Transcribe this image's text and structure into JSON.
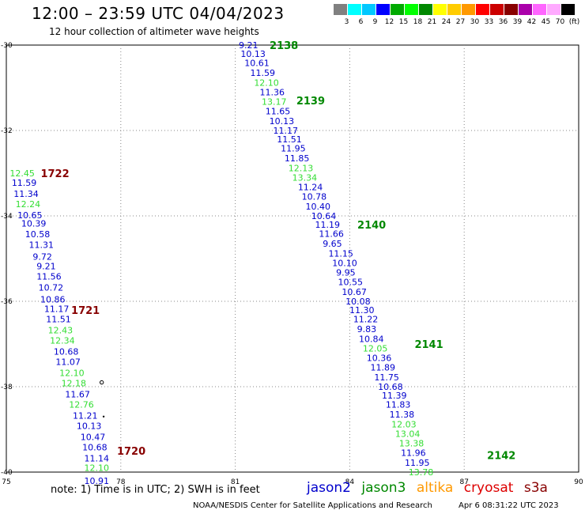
{
  "title": "12:00 – 23:59 UTC 04/04/2023",
  "subtitle": "12 hour collection of altimeter wave heights",
  "legend": {
    "colors": [
      "#808080",
      "#00ffff",
      "#00c8ff",
      "#0000ff",
      "#00aa00",
      "#00ff00",
      "#008800",
      "#ffff00",
      "#ffcc00",
      "#ff9900",
      "#ff0000",
      "#cc0000",
      "#880000",
      "#aa00aa",
      "#ff66ff",
      "#ffaaff",
      "#000000"
    ],
    "labels": [
      "3",
      "6",
      "9",
      "12",
      "15",
      "18",
      "21",
      "24",
      "27",
      "30",
      "33",
      "36",
      "39",
      "42",
      "45",
      "70",
      "(ft)"
    ]
  },
  "notes": "note:  1) Time is in UTC;  2) SWH is in feet",
  "satellites": [
    {
      "name": "jason2",
      "color": "#0000cc"
    },
    {
      "name": "jason3",
      "color": "#008800"
    },
    {
      "name": "altika",
      "color": "#ff9900"
    },
    {
      "name": "cryosat",
      "color": "#dd0000"
    },
    {
      "name": "s3a",
      "color": "#880000"
    }
  ],
  "credit": "NOAA/NESDIS Center for Satellite Applications and Research",
  "timestamp": "Apr  6 08:31:22 UTC 2023",
  "chart_data": {
    "type": "scatter",
    "xlim": [
      75,
      90
    ],
    "ylim": [
      -40,
      -30
    ],
    "xticks": [
      "75",
      "78",
      "81",
      "84",
      "87",
      "90"
    ],
    "yticks": [
      "-30",
      "-32",
      "-34",
      "-36",
      "-38",
      "-40"
    ],
    "grid": true,
    "passes": [
      {
        "label": "1722",
        "x": 75.9,
        "y": -33.0,
        "color": "#880000"
      },
      {
        "label": "1721",
        "x": 76.7,
        "y": -36.2,
        "color": "#880000"
      },
      {
        "label": "1720",
        "x": 77.9,
        "y": -39.5,
        "color": "#880000"
      },
      {
        "label": "2138",
        "x": 81.9,
        "y": -30.0,
        "color": "#008800"
      },
      {
        "label": "2139",
        "x": 82.6,
        "y": -31.3,
        "color": "#008800"
      },
      {
        "label": "2140",
        "x": 84.2,
        "y": -34.2,
        "color": "#008800"
      },
      {
        "label": "2141",
        "x": 85.7,
        "y": -37.0,
        "color": "#008800"
      },
      {
        "label": "2142",
        "x": 87.6,
        "y": -39.6,
        "color": "#008800"
      }
    ],
    "markers": [
      {
        "x": 77.5,
        "y": -37.9,
        "shape": "ring"
      },
      {
        "x": 77.55,
        "y": -38.7,
        "shape": "dot"
      }
    ],
    "series": [
      {
        "points": [
          {
            "x": 75.05,
            "y": -33.0,
            "v": "12.45",
            "c": "#33dd33"
          },
          {
            "x": 75.1,
            "y": -33.22,
            "v": "11.59",
            "c": "#0000cc"
          },
          {
            "x": 75.15,
            "y": -33.48,
            "v": "11.34",
            "c": "#0000cc"
          },
          {
            "x": 75.2,
            "y": -33.72,
            "v": "12.24",
            "c": "#33dd33"
          },
          {
            "x": 75.25,
            "y": -33.98,
            "v": "10.65",
            "c": "#0000cc"
          },
          {
            "x": 75.35,
            "y": -34.18,
            "v": "10.39",
            "c": "#0000cc"
          },
          {
            "x": 75.45,
            "y": -34.43,
            "v": "10.58",
            "c": "#0000cc"
          },
          {
            "x": 75.55,
            "y": -34.68,
            "v": "11.31",
            "c": "#0000cc"
          },
          {
            "x": 75.65,
            "y": -34.95,
            "v": "9.72",
            "c": "#0000cc"
          },
          {
            "x": 75.75,
            "y": -35.18,
            "v": "9.21",
            "c": "#0000cc"
          },
          {
            "x": 75.75,
            "y": -35.42,
            "v": "11.56",
            "c": "#0000cc"
          },
          {
            "x": 75.8,
            "y": -35.68,
            "v": "10.72",
            "c": "#0000cc"
          },
          {
            "x": 75.85,
            "y": -35.95,
            "v": "10.86",
            "c": "#0000cc"
          },
          {
            "x": 75.95,
            "y": -36.18,
            "v": "11.17",
            "c": "#0000cc"
          },
          {
            "x": 76.0,
            "y": -36.42,
            "v": "11.51",
            "c": "#0000cc"
          },
          {
            "x": 76.05,
            "y": -36.68,
            "v": "12.43",
            "c": "#33dd33"
          },
          {
            "x": 76.1,
            "y": -36.92,
            "v": "12.34",
            "c": "#33dd33"
          },
          {
            "x": 76.2,
            "y": -37.18,
            "v": "10.68",
            "c": "#0000cc"
          },
          {
            "x": 76.25,
            "y": -37.42,
            "v": "11.07",
            "c": "#0000cc"
          },
          {
            "x": 76.35,
            "y": -37.68,
            "v": "12.10",
            "c": "#33dd33"
          },
          {
            "x": 76.4,
            "y": -37.92,
            "v": "12.18",
            "c": "#33dd33"
          },
          {
            "x": 76.5,
            "y": -38.18,
            "v": "11.67",
            "c": "#0000cc"
          },
          {
            "x": 76.6,
            "y": -38.42,
            "v": "12.76",
            "c": "#33dd33"
          },
          {
            "x": 76.7,
            "y": -38.68,
            "v": "11.21",
            "c": "#0000cc"
          },
          {
            "x": 76.8,
            "y": -38.92,
            "v": "10.13",
            "c": "#0000cc"
          },
          {
            "x": 76.9,
            "y": -39.18,
            "v": "10.47",
            "c": "#0000cc"
          },
          {
            "x": 76.95,
            "y": -39.42,
            "v": "10.68",
            "c": "#0000cc"
          },
          {
            "x": 77.0,
            "y": -39.68,
            "v": "11.14",
            "c": "#0000cc"
          },
          {
            "x": 77.0,
            "y": -39.9,
            "v": "12.10",
            "c": "#33dd33"
          },
          {
            "x": 77.0,
            "y": -40.2,
            "v": "10.91",
            "c": "#0000cc"
          }
        ]
      },
      {
        "points": [
          {
            "x": 81.05,
            "y": -30.0,
            "v": "9.21",
            "c": "#0000cc"
          },
          {
            "x": 81.1,
            "y": -30.2,
            "v": "10.13",
            "c": "#0000cc"
          },
          {
            "x": 81.2,
            "y": -30.42,
            "v": "10.61",
            "c": "#0000cc"
          },
          {
            "x": 81.35,
            "y": -30.65,
            "v": "11.59",
            "c": "#0000cc"
          },
          {
            "x": 81.45,
            "y": -30.88,
            "v": "12.10",
            "c": "#33dd33"
          },
          {
            "x": 81.6,
            "y": -31.1,
            "v": "11.36",
            "c": "#0000cc"
          },
          {
            "x": 81.65,
            "y": -31.32,
            "v": "13.17",
            "c": "#33dd33"
          },
          {
            "x": 81.75,
            "y": -31.55,
            "v": "11.65",
            "c": "#0000cc"
          },
          {
            "x": 81.85,
            "y": -31.78,
            "v": "10.13",
            "c": "#0000cc"
          },
          {
            "x": 81.95,
            "y": -32.0,
            "v": "11.17",
            "c": "#0000cc"
          },
          {
            "x": 82.05,
            "y": -32.2,
            "v": "11.51",
            "c": "#0000cc"
          },
          {
            "x": 82.15,
            "y": -32.42,
            "v": "11.95",
            "c": "#0000cc"
          },
          {
            "x": 82.25,
            "y": -32.65,
            "v": "11.85",
            "c": "#0000cc"
          },
          {
            "x": 82.35,
            "y": -32.88,
            "v": "12.13",
            "c": "#33dd33"
          },
          {
            "x": 82.45,
            "y": -33.1,
            "v": "13.34",
            "c": "#33dd33"
          },
          {
            "x": 82.6,
            "y": -33.32,
            "v": "11.24",
            "c": "#0000cc"
          },
          {
            "x": 82.7,
            "y": -33.55,
            "v": "10.78",
            "c": "#0000cc"
          },
          {
            "x": 82.8,
            "y": -33.78,
            "v": "10.40",
            "c": "#0000cc"
          },
          {
            "x": 82.95,
            "y": -34.0,
            "v": "10.64",
            "c": "#0000cc"
          },
          {
            "x": 83.05,
            "y": -34.2,
            "v": "11.19",
            "c": "#0000cc"
          },
          {
            "x": 83.15,
            "y": -34.42,
            "v": "11.66",
            "c": "#0000cc"
          },
          {
            "x": 83.25,
            "y": -34.65,
            "v": "9.65",
            "c": "#0000cc"
          },
          {
            "x": 83.4,
            "y": -34.88,
            "v": "11.15",
            "c": "#0000cc"
          },
          {
            "x": 83.5,
            "y": -35.1,
            "v": "10.10",
            "c": "#0000cc"
          },
          {
            "x": 83.6,
            "y": -35.32,
            "v": "9.95",
            "c": "#0000cc"
          },
          {
            "x": 83.65,
            "y": -35.55,
            "v": "10.55",
            "c": "#0000cc"
          },
          {
            "x": 83.75,
            "y": -35.78,
            "v": "10.67",
            "c": "#0000cc"
          },
          {
            "x": 83.85,
            "y": -36.0,
            "v": "10.08",
            "c": "#0000cc"
          },
          {
            "x": 83.95,
            "y": -36.2,
            "v": "11.30",
            "c": "#0000cc"
          },
          {
            "x": 84.05,
            "y": -36.42,
            "v": "11.22",
            "c": "#0000cc"
          },
          {
            "x": 84.15,
            "y": -36.65,
            "v": "9.83",
            "c": "#0000cc"
          },
          {
            "x": 84.2,
            "y": -36.88,
            "v": "10.84",
            "c": "#0000cc"
          },
          {
            "x": 84.3,
            "y": -37.1,
            "v": "12.05",
            "c": "#33dd33"
          },
          {
            "x": 84.4,
            "y": -37.32,
            "v": "10.36",
            "c": "#0000cc"
          },
          {
            "x": 84.5,
            "y": -37.55,
            "v": "11.89",
            "c": "#0000cc"
          },
          {
            "x": 84.6,
            "y": -37.78,
            "v": "11.75",
            "c": "#0000cc"
          },
          {
            "x": 84.7,
            "y": -38.0,
            "v": "10.68",
            "c": "#0000cc"
          },
          {
            "x": 84.8,
            "y": -38.2,
            "v": "11.39",
            "c": "#0000cc"
          },
          {
            "x": 84.9,
            "y": -38.42,
            "v": "11.83",
            "c": "#0000cc"
          },
          {
            "x": 85.0,
            "y": -38.65,
            "v": "11.38",
            "c": "#0000cc"
          },
          {
            "x": 85.05,
            "y": -38.88,
            "v": "12.03",
            "c": "#33dd33"
          },
          {
            "x": 85.15,
            "y": -39.1,
            "v": "13.04",
            "c": "#33dd33"
          },
          {
            "x": 85.25,
            "y": -39.32,
            "v": "13.38",
            "c": "#33dd33"
          },
          {
            "x": 85.3,
            "y": -39.55,
            "v": "11.96",
            "c": "#0000cc"
          },
          {
            "x": 85.4,
            "y": -39.78,
            "v": "11.95",
            "c": "#0000cc"
          },
          {
            "x": 85.5,
            "y": -40.0,
            "v": "13.78",
            "c": "#33dd33"
          }
        ]
      }
    ]
  }
}
